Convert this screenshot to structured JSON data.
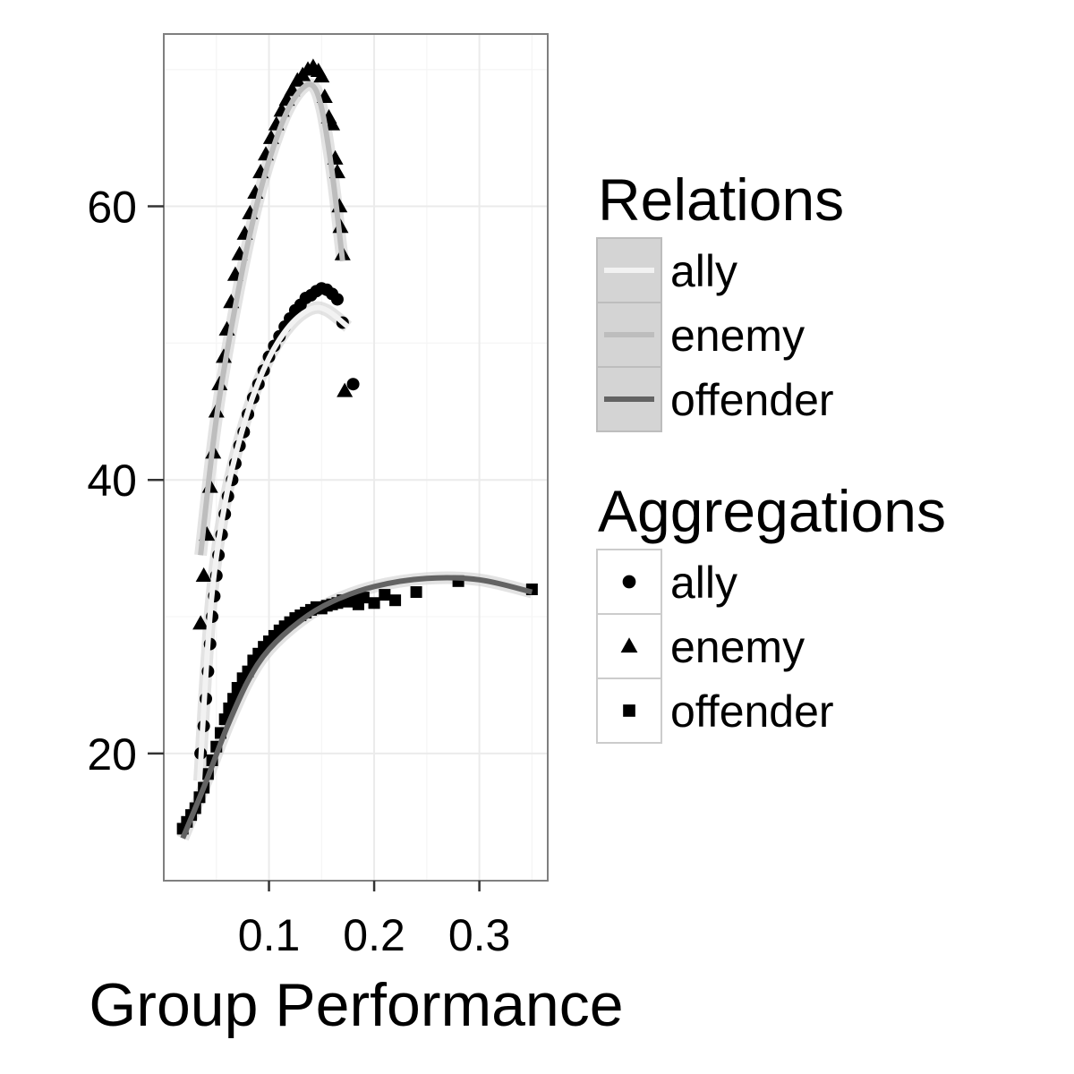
{
  "chart_data": {
    "type": "scatter",
    "xlabel": "Group Performance",
    "ylabel": "",
    "xlim": [
      0.0,
      0.365
    ],
    "ylim": [
      10.7,
      72.6
    ],
    "x_ticks": [
      0.1,
      0.2,
      0.3
    ],
    "x_tick_labels": [
      "0.1",
      "0.2",
      "0.3"
    ],
    "y_ticks": [
      20,
      40,
      60
    ],
    "y_tick_labels": [
      "20",
      "40",
      "60"
    ],
    "grid": true,
    "legend_placement": "right",
    "colors": {
      "ally_line": "#f2f2f2",
      "enemy_line": "#bdbdbd",
      "offender_line": "#636363",
      "ribbon": "#cccccc",
      "points": "#000000",
      "panel_border": "#7f7f7f",
      "grid": "#ebebeb"
    },
    "relations_legend": {
      "title": "Relations",
      "entries": [
        "ally",
        "enemy",
        "offender"
      ]
    },
    "aggregations_legend": {
      "title": "Aggregations",
      "entries": [
        "ally",
        "enemy",
        "offender"
      ]
    },
    "series": [
      {
        "name": "ally",
        "marker": "circle",
        "points": [
          [
            0.035,
            20.0
          ],
          [
            0.038,
            22.0
          ],
          [
            0.04,
            24.0
          ],
          [
            0.042,
            26.0
          ],
          [
            0.044,
            28.0
          ],
          [
            0.046,
            30.0
          ],
          [
            0.048,
            31.5
          ],
          [
            0.05,
            33.0
          ],
          [
            0.052,
            34.5
          ],
          [
            0.055,
            36.0
          ],
          [
            0.058,
            37.5
          ],
          [
            0.061,
            38.8
          ],
          [
            0.065,
            40.0
          ],
          [
            0.068,
            41.2
          ],
          [
            0.072,
            42.5
          ],
          [
            0.076,
            43.5
          ],
          [
            0.08,
            44.8
          ],
          [
            0.085,
            46.0
          ],
          [
            0.09,
            47.0
          ],
          [
            0.095,
            48.0
          ],
          [
            0.1,
            49.0
          ],
          [
            0.105,
            49.8
          ],
          [
            0.11,
            50.5
          ],
          [
            0.115,
            51.2
          ],
          [
            0.12,
            51.8
          ],
          [
            0.125,
            52.4
          ],
          [
            0.13,
            52.8
          ],
          [
            0.135,
            53.3
          ],
          [
            0.14,
            53.5
          ],
          [
            0.145,
            53.8
          ],
          [
            0.15,
            54.0
          ],
          [
            0.155,
            53.9
          ],
          [
            0.16,
            53.6
          ],
          [
            0.165,
            53.2
          ],
          [
            0.17,
            51.5
          ],
          [
            0.18,
            47.0
          ]
        ],
        "fit": [
          [
            0.034,
            18.0
          ],
          [
            0.045,
            31.0
          ],
          [
            0.06,
            39.0
          ],
          [
            0.08,
            45.0
          ],
          [
            0.1,
            48.9
          ],
          [
            0.12,
            51.3
          ],
          [
            0.14,
            52.5
          ],
          [
            0.155,
            52.4
          ],
          [
            0.175,
            51.2
          ]
        ]
      },
      {
        "name": "enemy",
        "marker": "triangle",
        "points": [
          [
            0.035,
            29.5
          ],
          [
            0.038,
            33.0
          ],
          [
            0.041,
            36.0
          ],
          [
            0.044,
            39.5
          ],
          [
            0.047,
            42.0
          ],
          [
            0.05,
            45.0
          ],
          [
            0.053,
            47.0
          ],
          [
            0.057,
            49.0
          ],
          [
            0.06,
            51.0
          ],
          [
            0.064,
            53.0
          ],
          [
            0.068,
            55.0
          ],
          [
            0.072,
            56.5
          ],
          [
            0.077,
            58.0
          ],
          [
            0.082,
            59.5
          ],
          [
            0.087,
            61.0
          ],
          [
            0.092,
            62.5
          ],
          [
            0.097,
            63.8
          ],
          [
            0.102,
            65.0
          ],
          [
            0.107,
            66.0
          ],
          [
            0.112,
            67.0
          ],
          [
            0.117,
            67.8
          ],
          [
            0.122,
            68.5
          ],
          [
            0.127,
            69.2
          ],
          [
            0.132,
            69.6
          ],
          [
            0.137,
            70.0
          ],
          [
            0.142,
            70.2
          ],
          [
            0.147,
            69.9
          ],
          [
            0.15,
            69.5
          ],
          [
            0.153,
            68.0
          ],
          [
            0.157,
            66.5
          ],
          [
            0.16,
            66.0
          ],
          [
            0.163,
            63.5
          ],
          [
            0.165,
            62.5
          ],
          [
            0.167,
            60.0
          ],
          [
            0.168,
            58.5
          ],
          [
            0.17,
            56.5
          ],
          [
            0.172,
            46.5
          ]
        ],
        "fit": [
          [
            0.035,
            34.5
          ],
          [
            0.05,
            44.5
          ],
          [
            0.07,
            53.5
          ],
          [
            0.09,
            60.6
          ],
          [
            0.11,
            65.6
          ],
          [
            0.125,
            68.0
          ],
          [
            0.14,
            68.9
          ],
          [
            0.15,
            67.2
          ],
          [
            0.16,
            62.5
          ],
          [
            0.17,
            56.0
          ]
        ]
      },
      {
        "name": "offender",
        "marker": "square",
        "points": [
          [
            0.018,
            14.5
          ],
          [
            0.022,
            15.0
          ],
          [
            0.026,
            15.5
          ],
          [
            0.03,
            16.0
          ],
          [
            0.034,
            16.8
          ],
          [
            0.038,
            17.5
          ],
          [
            0.042,
            18.5
          ],
          [
            0.046,
            19.5
          ],
          [
            0.05,
            20.5
          ],
          [
            0.054,
            21.5
          ],
          [
            0.058,
            22.5
          ],
          [
            0.062,
            23.3
          ],
          [
            0.066,
            24.0
          ],
          [
            0.07,
            24.8
          ],
          [
            0.075,
            25.5
          ],
          [
            0.08,
            26.0
          ],
          [
            0.085,
            26.8
          ],
          [
            0.09,
            27.3
          ],
          [
            0.095,
            27.8
          ],
          [
            0.1,
            28.2
          ],
          [
            0.105,
            28.6
          ],
          [
            0.11,
            29.0
          ],
          [
            0.115,
            29.3
          ],
          [
            0.12,
            29.6
          ],
          [
            0.125,
            29.9
          ],
          [
            0.13,
            30.1
          ],
          [
            0.135,
            30.3
          ],
          [
            0.14,
            30.5
          ],
          [
            0.145,
            30.7
          ],
          [
            0.15,
            30.6
          ],
          [
            0.155,
            30.8
          ],
          [
            0.16,
            30.9
          ],
          [
            0.165,
            31.0
          ],
          [
            0.17,
            31.2
          ],
          [
            0.175,
            31.1
          ],
          [
            0.18,
            31.3
          ],
          [
            0.185,
            30.9
          ],
          [
            0.19,
            31.4
          ],
          [
            0.2,
            31.0
          ],
          [
            0.21,
            31.6
          ],
          [
            0.22,
            31.2
          ],
          [
            0.24,
            31.8
          ],
          [
            0.28,
            32.6
          ],
          [
            0.35,
            32.0
          ]
        ],
        "fit": [
          [
            0.018,
            13.8
          ],
          [
            0.04,
            17.9
          ],
          [
            0.06,
            21.9
          ],
          [
            0.08,
            25.3
          ],
          [
            0.1,
            27.6
          ],
          [
            0.13,
            29.7
          ],
          [
            0.16,
            31.1
          ],
          [
            0.2,
            32.2
          ],
          [
            0.25,
            32.8
          ],
          [
            0.3,
            32.7
          ],
          [
            0.35,
            31.8
          ]
        ]
      }
    ]
  }
}
